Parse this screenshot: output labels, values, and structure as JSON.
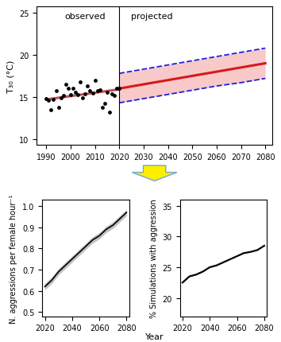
{
  "chart_data": [
    {
      "type": "line",
      "ylabel": "T₃₀ (°C)",
      "annotations": [
        "observed",
        "projected"
      ],
      "xlim": [
        1986,
        2083
      ],
      "xticks": [
        1990,
        2000,
        2010,
        2020,
        2030,
        2040,
        2050,
        2060,
        2070,
        2080
      ],
      "ylim": [
        9.3,
        25.8
      ],
      "yticks": [
        10,
        15,
        20,
        25
      ],
      "series": [
        {
          "type": "scatter",
          "color": "#000000",
          "marker": "o",
          "x": [
            1990,
            1991,
            1992,
            1993,
            1994,
            1995,
            1996,
            1997,
            1998,
            1999,
            2000,
            2001,
            2002,
            2003,
            2004,
            2005,
            2006,
            2007,
            2008,
            2009,
            2010,
            2011,
            2012,
            2013,
            2014,
            2015,
            2016,
            2017,
            2018,
            2019,
            2020
          ],
          "values": [
            14.8,
            14.6,
            13.5,
            14.7,
            15.7,
            13.8,
            14.9,
            15.2,
            16.5,
            16.0,
            15.3,
            16.0,
            15.6,
            15.3,
            16.8,
            14.9,
            15.4,
            16.3,
            15.7,
            15.5,
            17.0,
            15.7,
            15.8,
            13.8,
            14.2,
            15.6,
            13.2,
            15.4,
            15.2,
            16.0,
            16.0
          ]
        },
        {
          "type": "line",
          "color": "#c0504d",
          "line_style": "solid",
          "x": [
            1990,
            2020
          ],
          "values": [
            14.7,
            15.9
          ]
        },
        {
          "type": "line",
          "color": "#1f1fdd",
          "line_style": "dashed",
          "x": [
            2020,
            2030,
            2040,
            2050,
            2060,
            2070,
            2080
          ],
          "values": [
            17.8,
            18.3,
            18.8,
            19.3,
            19.8,
            20.3,
            20.8
          ]
        },
        {
          "type": "line",
          "color": "#d7191c",
          "line_style": "solid",
          "x": [
            2020,
            2030,
            2040,
            2050,
            2060,
            2070,
            2080
          ],
          "values": [
            16.0,
            16.5,
            17.0,
            17.5,
            18.0,
            18.5,
            19.0
          ]
        },
        {
          "type": "line",
          "color": "#1f1fdd",
          "line_style": "dashed",
          "x": [
            2020,
            2030,
            2040,
            2050,
            2060,
            2070,
            2080
          ],
          "values": [
            14.3,
            14.8,
            15.3,
            15.8,
            16.3,
            16.7,
            17.2
          ]
        }
      ]
    },
    {
      "type": "line",
      "ylabel": "N. aggressions per female hour⁻¹",
      "xlim": [
        2018,
        2082
      ],
      "xticks": [
        2020,
        2040,
        2060,
        2080
      ],
      "ylim": [
        0.48,
        1.03
      ],
      "yticks": [
        0.5,
        0.6,
        0.7,
        0.8,
        0.9,
        {
          "value": 1.0,
          "label": "1.0"
        }
      ],
      "color": "#000000",
      "x": [
        2020,
        2025,
        2030,
        2035,
        2040,
        2045,
        2050,
        2055,
        2060,
        2065,
        2070,
        2075,
        2080
      ],
      "values": [
        0.62,
        0.65,
        0.69,
        0.72,
        0.75,
        0.78,
        0.81,
        0.84,
        0.86,
        0.89,
        0.91,
        0.94,
        0.97
      ],
      "error": [
        0.015,
        0.015,
        0.015,
        0.015,
        0.015,
        0.015,
        0.015,
        0.015,
        0.015,
        0.015,
        0.015,
        0.015,
        0.015
      ]
    },
    {
      "type": "line",
      "ylabel": "% Simulations with aggression",
      "xlabel": "Year",
      "xlim": [
        2018,
        2082
      ],
      "xticks": [
        2020,
        2040,
        2060,
        2080
      ],
      "ylim": [
        17,
        36
      ],
      "yticks": [
        20,
        25,
        30,
        35
      ],
      "color": "#000000",
      "x": [
        2020,
        2025,
        2030,
        2035,
        2040,
        2045,
        2050,
        2055,
        2060,
        2065,
        2070,
        2075,
        2080
      ],
      "values": [
        22.5,
        23.5,
        23.8,
        24.3,
        25.0,
        25.3,
        25.8,
        26.3,
        26.8,
        27.3,
        27.5,
        27.8,
        28.5
      ]
    }
  ]
}
